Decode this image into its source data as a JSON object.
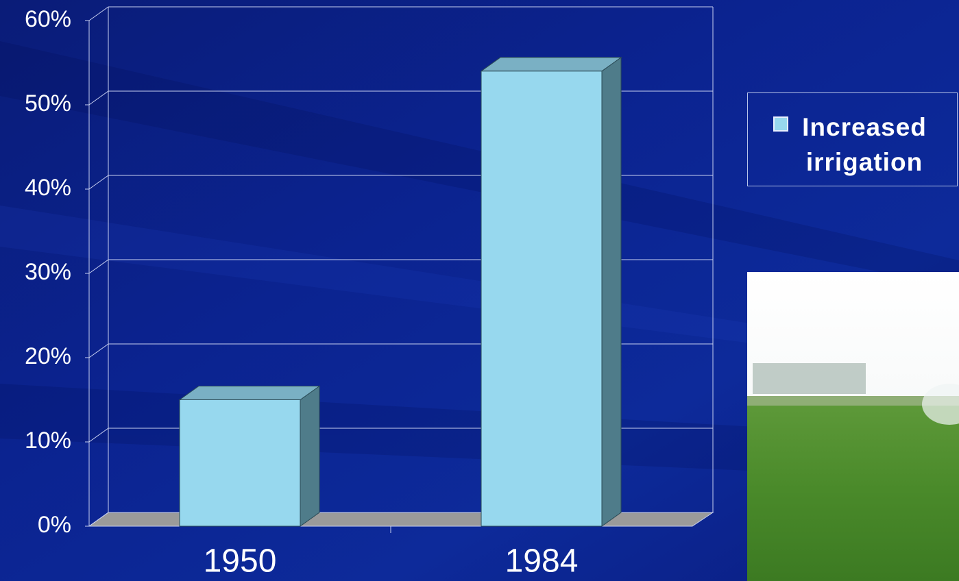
{
  "chart_data": {
    "type": "bar3d",
    "categories": [
      "1950",
      "1984"
    ],
    "series": [
      {
        "name": "Increased irrigation",
        "color": "#97d8ee",
        "values": [
          15,
          54
        ]
      }
    ],
    "ylim": [
      0,
      60
    ],
    "yticks": [
      {
        "value": 0,
        "label": "0%"
      },
      {
        "value": 10,
        "label": "10%"
      },
      {
        "value": 20,
        "label": "20%"
      },
      {
        "value": 30,
        "label": "30%"
      },
      {
        "value": 40,
        "label": "40%"
      },
      {
        "value": 50,
        "label": "50%"
      },
      {
        "value": 60,
        "label": "60%"
      }
    ],
    "grid": true
  }
}
